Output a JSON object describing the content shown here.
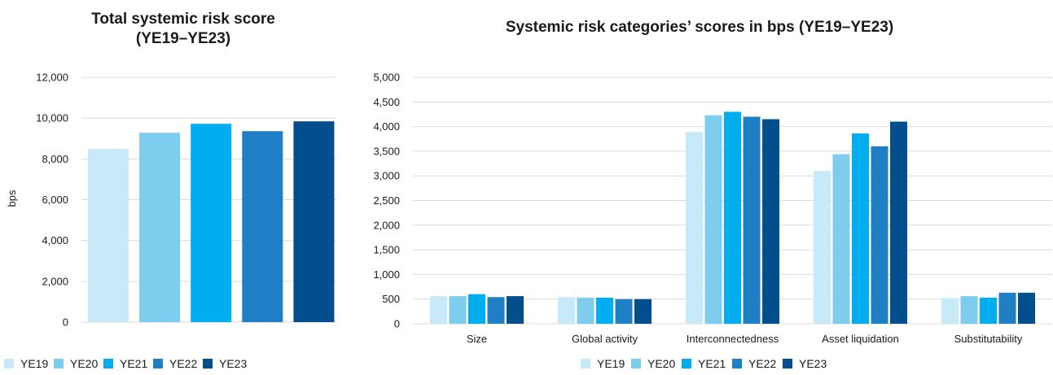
{
  "chart_data": [
    {
      "type": "bar",
      "title_lines": [
        "Total systemic risk score",
        "(YE19–YE23)"
      ],
      "ylabel": "bps",
      "xlabel": "",
      "ylim": [
        0,
        12000
      ],
      "yticks": [
        "0",
        "2,000",
        "4,000",
        "6,000",
        "8,000",
        "10,000",
        "12,000"
      ],
      "ytick_values": [
        0,
        2000,
        4000,
        6000,
        8000,
        10000,
        12000
      ],
      "grid": true,
      "legend_position": "bottom-left",
      "series": [
        {
          "name": "YE19",
          "values": [
            8500
          ]
        },
        {
          "name": "YE20",
          "values": [
            9280
          ]
        },
        {
          "name": "YE21",
          "values": [
            9720
          ]
        },
        {
          "name": "YE22",
          "values": [
            9360
          ]
        },
        {
          "name": "YE23",
          "values": [
            9840
          ]
        }
      ]
    },
    {
      "type": "bar",
      "title_lines": [
        "Systemic risk categories’ scores in bps (YE19–YE23)"
      ],
      "xlabel": "",
      "ylabel": "",
      "ylim": [
        0,
        5000
      ],
      "yticks": [
        "0",
        "500",
        "1,000",
        "1,500",
        "2,000",
        "2,500",
        "3,000",
        "3,500",
        "4,000",
        "4,500",
        "5,000"
      ],
      "ytick_values": [
        0,
        500,
        1000,
        1500,
        2000,
        2500,
        3000,
        3500,
        4000,
        4500,
        5000
      ],
      "grid": true,
      "legend_position": "bottom-center",
      "categories": [
        "Size",
        "Global activity",
        "Interconnectedness",
        "Asset liquidation",
        "Substitutability"
      ],
      "series": [
        {
          "name": "YE19",
          "values": [
            560,
            540,
            3890,
            3100,
            520
          ]
        },
        {
          "name": "YE20",
          "values": [
            560,
            530,
            4230,
            3440,
            560
          ]
        },
        {
          "name": "YE21",
          "values": [
            600,
            530,
            4300,
            3860,
            530
          ]
        },
        {
          "name": "YE22",
          "values": [
            540,
            500,
            4200,
            3600,
            630
          ]
        },
        {
          "name": "YE23",
          "values": [
            560,
            500,
            4150,
            4100,
            630
          ]
        }
      ]
    }
  ],
  "colors": {
    "YE19": "#c8e9f8",
    "YE20": "#7fcdee",
    "YE21": "#00aeef",
    "YE22": "#1f7fc4",
    "YE23": "#034e8c"
  }
}
